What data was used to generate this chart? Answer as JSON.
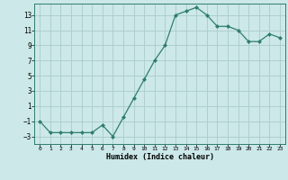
{
  "x": [
    0,
    1,
    2,
    3,
    4,
    5,
    6,
    7,
    8,
    9,
    10,
    11,
    12,
    13,
    14,
    15,
    16,
    17,
    18,
    19,
    20,
    21,
    22,
    23
  ],
  "y": [
    -1,
    -2.5,
    -2.5,
    -2.5,
    -2.5,
    -2.5,
    -1.5,
    -3,
    -0.5,
    2,
    4.5,
    7,
    9,
    13,
    13.5,
    14,
    13,
    11.5,
    11.5,
    11,
    9.5,
    9.5,
    10.5,
    10
  ],
  "line_color": "#2e7d6e",
  "marker": "D",
  "marker_size": 2.0,
  "bg_color": "#cce8e8",
  "grid_color": "#aacccc",
  "xlabel": "Humidex (Indice chaleur)",
  "xlim": [
    -0.5,
    23.5
  ],
  "ylim": [
    -4,
    14.5
  ],
  "yticks": [
    -3,
    -1,
    1,
    3,
    5,
    7,
    9,
    11,
    13
  ],
  "xtick_labels": [
    "0",
    "1",
    "2",
    "3",
    "4",
    "5",
    "6",
    "7",
    "8",
    "9",
    "10",
    "11",
    "12",
    "13",
    "14",
    "15",
    "16",
    "17",
    "18",
    "19",
    "20",
    "21",
    "22",
    "23"
  ]
}
